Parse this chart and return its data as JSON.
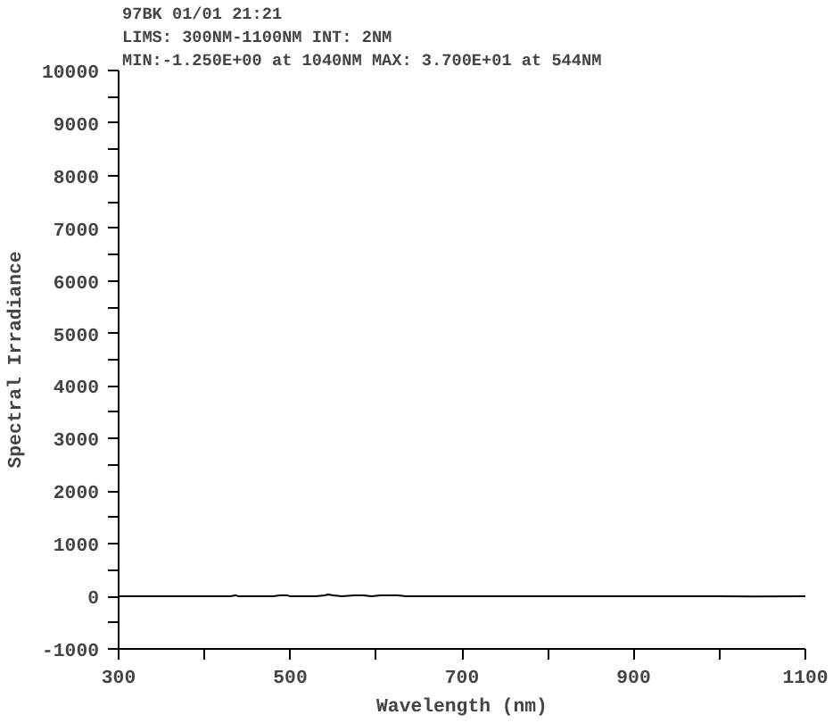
{
  "chart_data": {
    "type": "line",
    "xlabel": "Wavelength (nm)",
    "ylabel": "Spectral Irradiance",
    "annotations": [
      "97BK      01/01 21:21",
      "LIMS: 300NM-1100NM       INT: 2NM",
      "MIN:-1.250E+00 at 1040NM        MAX: 3.700E+01 at  544NM"
    ],
    "series": [
      {
        "color": "#000000",
        "x": [
          300,
          400,
          430,
          436,
          440,
          480,
          488,
          496,
          500,
          530,
          540,
          544,
          550,
          560,
          575,
          585,
          595,
          605,
          615,
          625,
          635,
          700,
          800,
          900,
          1000,
          1040,
          1100
        ],
        "values": [
          0,
          0,
          0,
          20,
          0,
          0,
          20,
          20,
          0,
          0,
          20,
          37,
          20,
          0,
          20,
          20,
          0,
          20,
          20,
          20,
          0,
          0,
          0,
          0,
          0,
          -1.25,
          0
        ]
      }
    ],
    "xlim": [
      300,
      1100
    ],
    "ylim": [
      -1000,
      10000
    ],
    "xticks": [
      300,
      {
        "value": 400,
        "label": null
      },
      500,
      {
        "value": 600,
        "label": null
      },
      700,
      {
        "value": 800,
        "label": null
      },
      900,
      {
        "value": 1000,
        "label": null
      },
      1100
    ],
    "yticks": [
      -1000,
      {
        "value": -500,
        "label": null
      },
      0,
      {
        "value": 500,
        "label": null
      },
      1000,
      {
        "value": 1500,
        "label": null
      },
      2000,
      {
        "value": 2500,
        "label": null
      },
      3000,
      {
        "value": 3500,
        "label": null
      },
      4000,
      {
        "value": 4500,
        "label": null
      },
      5000,
      {
        "value": 5500,
        "label": null
      },
      6000,
      {
        "value": 6500,
        "label": null
      },
      7000,
      {
        "value": 7500,
        "label": null
      },
      8000,
      {
        "value": 8500,
        "label": null
      },
      9000,
      {
        "value": 9500,
        "label": null
      },
      10000
    ],
    "grid": false,
    "marker": "none",
    "line_style": "solid"
  }
}
